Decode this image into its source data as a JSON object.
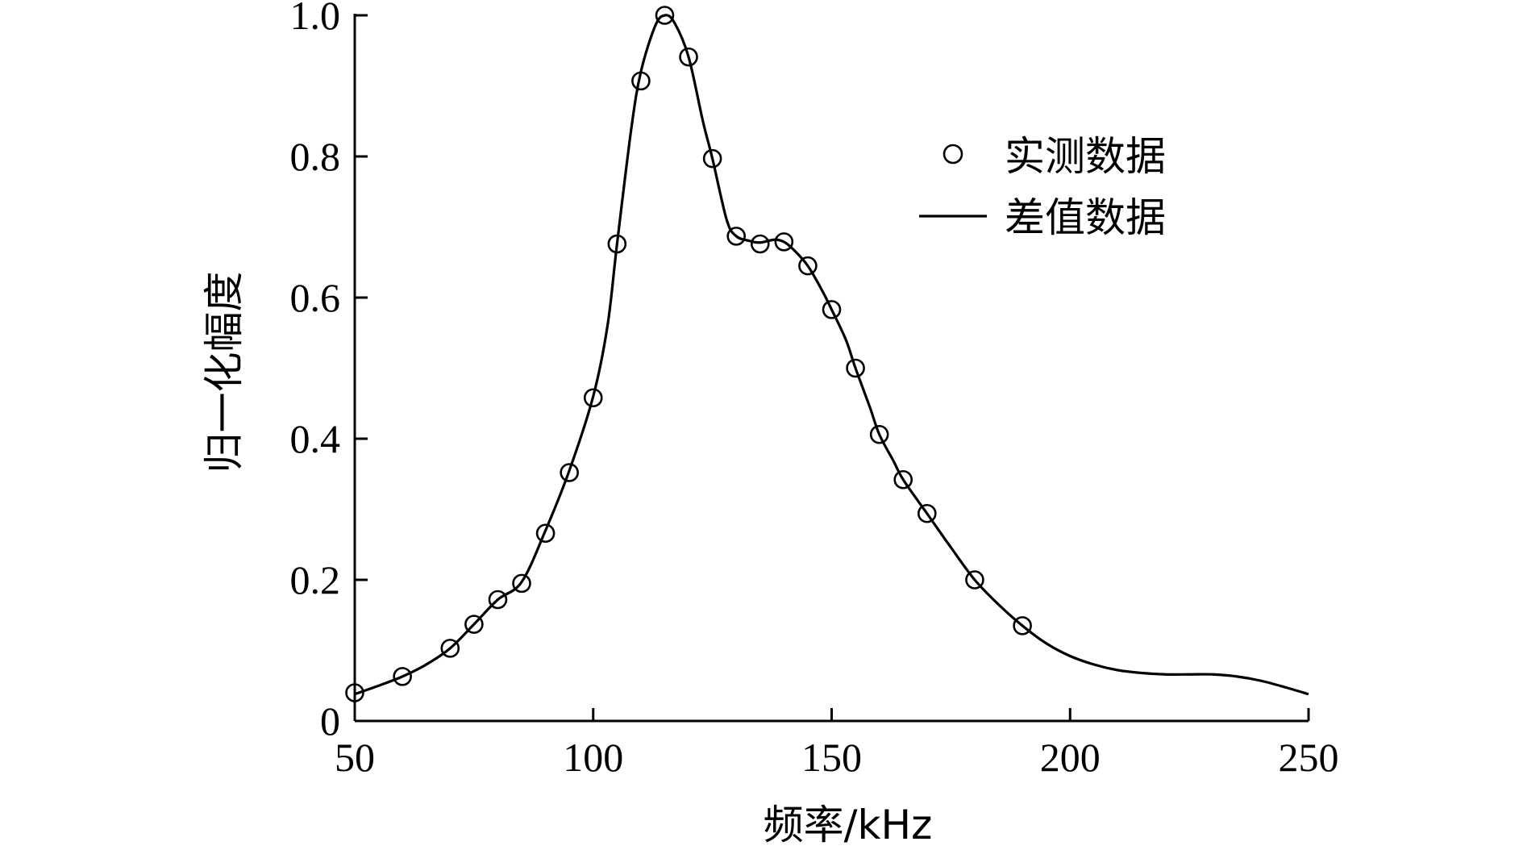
{
  "chart_data": {
    "type": "scatter",
    "xlabel": "频率/kHz",
    "ylabel": "归一化幅度",
    "xlim": [
      50,
      250
    ],
    "ylim": [
      0,
      1.0
    ],
    "x_ticks": [
      {
        "value": 50,
        "label": "50"
      },
      {
        "value": 100,
        "label": "100"
      },
      {
        "value": 150,
        "label": "150"
      },
      {
        "value": 200,
        "label": "200"
      },
      {
        "value": 250,
        "label": "250"
      }
    ],
    "y_ticks": [
      {
        "value": 0,
        "label": "0"
      },
      {
        "value": 0.2,
        "label": "0.2"
      },
      {
        "value": 0.4,
        "label": "0.4"
      },
      {
        "value": 0.6,
        "label": "0.6"
      },
      {
        "value": 0.8,
        "label": "0.8"
      },
      {
        "value": 1.0,
        "label": "1.0"
      }
    ],
    "grid": false,
    "legend_position": "top-right",
    "series": [
      {
        "name": "实测数据",
        "type": "scatter",
        "marker": "open-circle",
        "color": "#000000",
        "points": [
          [
            50,
            0.04
          ],
          [
            60,
            0.063
          ],
          [
            70,
            0.103
          ],
          [
            75,
            0.137
          ],
          [
            80,
            0.172
          ],
          [
            85,
            0.195
          ],
          [
            90,
            0.266
          ],
          [
            95,
            0.352
          ],
          [
            100,
            0.458
          ],
          [
            105,
            0.676
          ],
          [
            110,
            0.907
          ],
          [
            115,
            1.0
          ],
          [
            120,
            0.941
          ],
          [
            125,
            0.797
          ],
          [
            130,
            0.687
          ],
          [
            135,
            0.676
          ],
          [
            140,
            0.679
          ],
          [
            145,
            0.645
          ],
          [
            150,
            0.583
          ],
          [
            155,
            0.5
          ],
          [
            160,
            0.406
          ],
          [
            165,
            0.342
          ],
          [
            170,
            0.294
          ],
          [
            180,
            0.2
          ],
          [
            190,
            0.135
          ]
        ]
      },
      {
        "name": "差值数据",
        "type": "line",
        "color": "#000000",
        "points": [
          [
            50,
            0.038
          ],
          [
            55,
            0.05
          ],
          [
            60,
            0.063
          ],
          [
            65,
            0.08
          ],
          [
            70,
            0.103
          ],
          [
            75,
            0.137
          ],
          [
            80,
            0.172
          ],
          [
            85,
            0.197
          ],
          [
            90,
            0.27
          ],
          [
            95,
            0.355
          ],
          [
            100,
            0.46
          ],
          [
            103,
            0.56
          ],
          [
            105,
            0.676
          ],
          [
            108,
            0.84
          ],
          [
            110,
            0.92
          ],
          [
            113,
            0.985
          ],
          [
            115,
            1.0
          ],
          [
            117,
            0.99
          ],
          [
            120,
            0.941
          ],
          [
            123,
            0.85
          ],
          [
            125,
            0.797
          ],
          [
            128,
            0.71
          ],
          [
            130,
            0.687
          ],
          [
            133,
            0.68
          ],
          [
            135,
            0.678
          ],
          [
            138,
            0.682
          ],
          [
            140,
            0.679
          ],
          [
            142,
            0.668
          ],
          [
            145,
            0.645
          ],
          [
            148,
            0.61
          ],
          [
            150,
            0.583
          ],
          [
            153,
            0.54
          ],
          [
            155,
            0.5
          ],
          [
            158,
            0.445
          ],
          [
            160,
            0.406
          ],
          [
            163,
            0.368
          ],
          [
            165,
            0.342
          ],
          [
            170,
            0.294
          ],
          [
            175,
            0.246
          ],
          [
            180,
            0.2
          ],
          [
            185,
            0.165
          ],
          [
            190,
            0.135
          ],
          [
            195,
            0.11
          ],
          [
            200,
            0.092
          ],
          [
            205,
            0.08
          ],
          [
            210,
            0.072
          ],
          [
            215,
            0.068
          ],
          [
            220,
            0.066
          ],
          [
            225,
            0.066
          ],
          [
            230,
            0.066
          ],
          [
            235,
            0.063
          ],
          [
            240,
            0.057
          ],
          [
            245,
            0.048
          ],
          [
            250,
            0.038
          ]
        ]
      }
    ]
  }
}
